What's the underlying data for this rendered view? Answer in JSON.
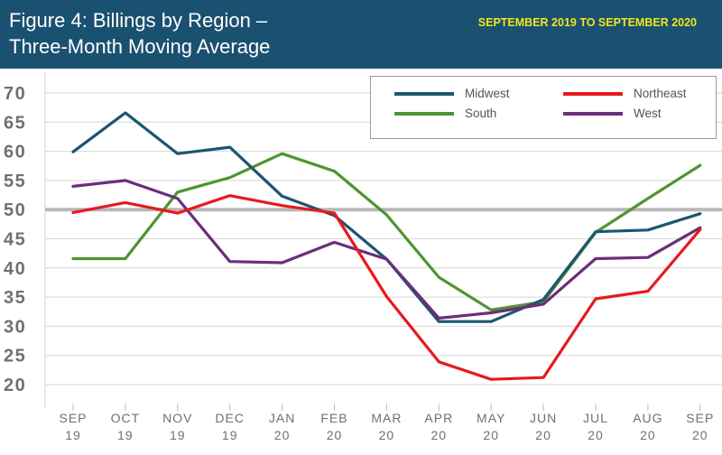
{
  "header": {
    "title_line1": "Figure 4: Billings by Region –",
    "title_line2": "Three-Month Moving Average",
    "subtitle": "SEPTEMBER 2019 TO SEPTEMBER 2020"
  },
  "colors": {
    "header_bg": "#1b5170",
    "subtitle": "#f1e51f",
    "baseline_50": "#b8b8b8",
    "gridline": "#d6d6d6",
    "axis_text": "#707070"
  },
  "chart_data": {
    "type": "line",
    "title": "Figure 4: Billings by Region – Three-Month Moving Average",
    "subtitle": "SEPTEMBER 2019 TO SEPTEMBER 2020",
    "xlabel": "",
    "ylabel": "",
    "categories": [
      "SEP 19",
      "OCT 19",
      "NOV 19",
      "DEC 19",
      "JAN 20",
      "FEB 20",
      "MAR 20",
      "APR 20",
      "MAY 20",
      "JUN 20",
      "JUL 20",
      "AUG 20",
      "SEP 20"
    ],
    "x_tick_labels": [
      {
        "month": "SEP",
        "year": "19"
      },
      {
        "month": "OCT",
        "year": "19"
      },
      {
        "month": "NOV",
        "year": "19"
      },
      {
        "month": "DEC",
        "year": "19"
      },
      {
        "month": "JAN",
        "year": "20"
      },
      {
        "month": "FEB",
        "year": "20"
      },
      {
        "month": "MAR",
        "year": "20"
      },
      {
        "month": "APR",
        "year": "20"
      },
      {
        "month": "MAY",
        "year": "20"
      },
      {
        "month": "JUN",
        "year": "20"
      },
      {
        "month": "JUL",
        "year": "20"
      },
      {
        "month": "AUG",
        "year": "20"
      },
      {
        "month": "SEP",
        "year": "20"
      }
    ],
    "y_ticks": [
      20,
      25,
      30,
      35,
      40,
      45,
      50,
      55,
      60,
      65,
      70
    ],
    "ylim": [
      18,
      72
    ],
    "grid": true,
    "reference_line": 50,
    "legend_position": "top-right",
    "series": [
      {
        "name": "Midwest",
        "color": "#1a5670",
        "values": [
          59.9,
          66.6,
          59.6,
          60.7,
          52.3,
          49.0,
          41.5,
          30.8,
          30.8,
          34.6,
          46.2,
          46.5,
          49.3
        ]
      },
      {
        "name": "Northeast",
        "color": "#e8191c",
        "values": [
          49.5,
          51.2,
          49.4,
          52.4,
          50.7,
          49.4,
          35.1,
          23.9,
          20.9,
          21.2,
          34.7,
          36.0,
          46.6
        ]
      },
      {
        "name": "South",
        "color": "#4e9530",
        "values": [
          41.6,
          41.6,
          53.0,
          55.5,
          59.6,
          56.6,
          49.1,
          38.4,
          32.8,
          34.2,
          46.1,
          51.9,
          57.6
        ]
      },
      {
        "name": "West",
        "color": "#6c2d7a",
        "values": [
          54.0,
          55.0,
          51.9,
          41.1,
          40.9,
          44.4,
          41.5,
          31.4,
          32.3,
          33.8,
          41.6,
          41.8,
          46.9
        ]
      }
    ]
  }
}
